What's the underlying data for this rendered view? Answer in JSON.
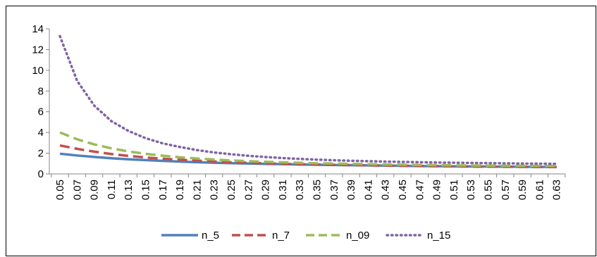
{
  "chart_data": {
    "type": "line",
    "title": "",
    "xlabel": "",
    "ylabel": "",
    "ylim": [
      0,
      14
    ],
    "yticks": [
      0,
      2,
      4,
      6,
      8,
      10,
      12,
      14
    ],
    "grid": false,
    "legend_position": "bottom",
    "x": [
      "0.05",
      "0.07",
      "0.09",
      "0.11",
      "0.13",
      "0.15",
      "0.17",
      "0.19",
      "0.21",
      "0.23",
      "0.25",
      "0.27",
      "0.29",
      "0.31",
      "0.33",
      "0.35",
      "0.37",
      "0.39",
      "0.41",
      "0.43",
      "0.45",
      "0.47",
      "0.49",
      "0.51",
      "0.53",
      "0.55",
      "0.57",
      "0.59",
      "0.61",
      "0.63"
    ],
    "series": [
      {
        "name": "n_5",
        "color": "#4f81bd",
        "dash": "solid",
        "values": [
          1.95,
          1.78,
          1.64,
          1.51,
          1.41,
          1.33,
          1.26,
          1.19,
          1.13,
          1.08,
          1.04,
          1.0,
          0.97,
          0.94,
          0.91,
          0.88,
          0.86,
          0.84,
          0.82,
          0.8,
          0.78,
          0.76,
          0.75,
          0.73,
          0.72,
          0.71,
          0.7,
          0.69,
          0.68,
          0.67
        ]
      },
      {
        "name": "n_7",
        "color": "#c0504d",
        "dash": "dashed",
        "values": [
          2.75,
          2.42,
          2.15,
          1.92,
          1.74,
          1.59,
          1.47,
          1.37,
          1.28,
          1.2,
          1.13,
          1.07,
          1.02,
          0.98,
          0.94,
          0.91,
          0.88,
          0.85,
          0.83,
          0.81,
          0.79,
          0.77,
          0.75,
          0.73,
          0.71,
          0.7,
          0.69,
          0.68,
          0.67,
          0.66
        ]
      },
      {
        "name": "n_09",
        "color": "#9bbb59",
        "dash": "dashed",
        "values": [
          4.0,
          3.35,
          2.85,
          2.47,
          2.17,
          1.94,
          1.76,
          1.61,
          1.49,
          1.39,
          1.3,
          1.23,
          1.17,
          1.12,
          1.07,
          1.03,
          1.0,
          0.97,
          0.94,
          0.91,
          0.89,
          0.87,
          0.85,
          0.83,
          0.81,
          0.8,
          0.79,
          0.78,
          0.77,
          0.76
        ]
      },
      {
        "name": "n_15",
        "color": "#8064a2",
        "dash": "dotted",
        "values": [
          13.3,
          9.0,
          6.6,
          5.1,
          4.15,
          3.45,
          2.95,
          2.6,
          2.3,
          2.07,
          1.9,
          1.75,
          1.63,
          1.53,
          1.45,
          1.38,
          1.32,
          1.27,
          1.23,
          1.19,
          1.16,
          1.13,
          1.1,
          1.08,
          1.06,
          1.04,
          1.02,
          1.0,
          0.99,
          0.97
        ]
      }
    ]
  }
}
